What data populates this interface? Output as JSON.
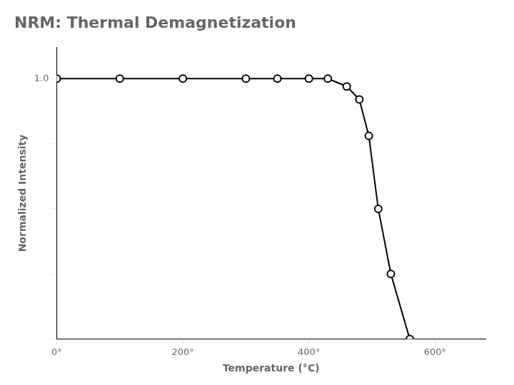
{
  "chart_data": {
    "type": "line",
    "title": "NRM: Thermal Demagnetization",
    "xlabel": "Temperature (°C)",
    "ylabel": "Normalized Intensity",
    "x": [
      0,
      100,
      200,
      300,
      350,
      400,
      430,
      460,
      480,
      495,
      510,
      530,
      560
    ],
    "values": [
      1.0,
      1.0,
      1.0,
      1.0,
      1.0,
      1.0,
      1.0,
      0.97,
      0.92,
      0.78,
      0.5,
      0.25,
      0.0
    ],
    "color": "#000000",
    "marker": "open_circle",
    "xlim": [
      0,
      680
    ],
    "xticks": [
      {
        "value": 0,
        "label": "0°"
      },
      {
        "value": 200,
        "label": "200°"
      },
      {
        "value": 400,
        "label": "400°"
      },
      {
        "value": 600,
        "label": "600°"
      }
    ],
    "ylim": [
      0,
      1.12
    ],
    "yticks": [
      {
        "value": 0.0,
        "label": null
      },
      {
        "value": 0.25,
        "label": null
      },
      {
        "value": 0.5,
        "label": null
      },
      {
        "value": 0.75,
        "label": null
      },
      {
        "value": 1.0,
        "label": "1.0"
      }
    ],
    "grid": false
  }
}
